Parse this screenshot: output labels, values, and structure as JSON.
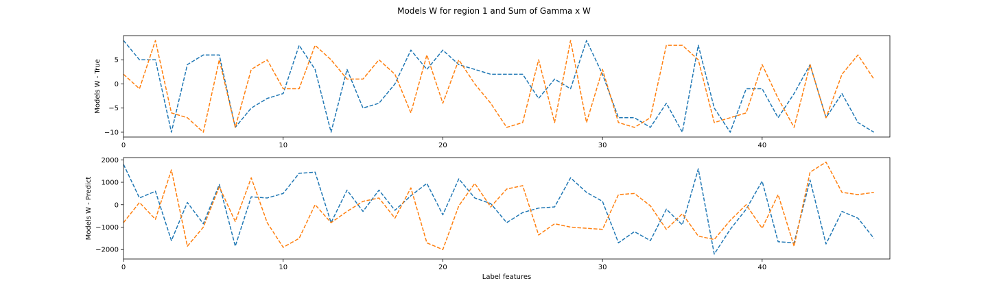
{
  "chart_data": {
    "suptitle": "Models W for region 1 and Sum of Gamma x W",
    "type": "line",
    "colors": [
      "#1f77b4",
      "#ff7f0e"
    ],
    "panels": [
      {
        "type": "line",
        "ylabel": "Models W - True",
        "xlabel": "",
        "xlim": [
          0,
          48
        ],
        "ylim": [
          -11,
          10
        ],
        "xticks": [
          0,
          10,
          20,
          30,
          40
        ],
        "yticks": [
          -10,
          -5,
          0,
          5
        ],
        "grid": false,
        "x": [
          0,
          1,
          2,
          3,
          4,
          5,
          6,
          7,
          8,
          9,
          10,
          11,
          12,
          13,
          14,
          15,
          16,
          17,
          18,
          19,
          20,
          21,
          22,
          23,
          24,
          25,
          26,
          27,
          28,
          29,
          30,
          31,
          32,
          33,
          34,
          35,
          36,
          37,
          38,
          39,
          40,
          41,
          42,
          43,
          44,
          45,
          46,
          47
        ],
        "series": [
          {
            "values": [
              9,
              5,
              5,
              -10,
              4,
              6,
              6,
              -9,
              -5,
              -3,
              -2,
              8,
              3,
              -10,
              3,
              -5,
              -4,
              0,
              7,
              3,
              7,
              4,
              3,
              2,
              2,
              2,
              -3,
              1,
              -1,
              9,
              2,
              -7,
              -7,
              -9,
              -4,
              -10,
              8,
              -5,
              -10,
              -1,
              -1,
              -7,
              -2,
              4,
              -7,
              -2,
              -8,
              -10
            ]
          },
          {
            "values": [
              2,
              -1,
              9,
              -6,
              -7,
              -10,
              5,
              -9,
              3,
              5,
              -1,
              -1,
              8,
              5,
              1,
              1,
              5,
              2,
              -6,
              6,
              -4,
              5,
              0,
              -4,
              -9,
              -8,
              5,
              -8,
              9,
              -8,
              3,
              -8,
              -9,
              -7,
              8,
              8,
              5,
              -8,
              -7,
              -6,
              4,
              -3,
              -9,
              4,
              -7,
              2,
              6,
              1
            ]
          }
        ]
      },
      {
        "type": "line",
        "ylabel": "Models W - Predict",
        "xlabel": "Label features",
        "xlim": [
          0,
          48
        ],
        "ylim": [
          -2420,
          2100
        ],
        "xticks": [
          0,
          10,
          20,
          30,
          40
        ],
        "yticks": [
          -2000,
          -1000,
          0,
          1000,
          2000
        ],
        "grid": false,
        "x": [
          0,
          1,
          2,
          3,
          4,
          5,
          6,
          7,
          8,
          9,
          10,
          11,
          12,
          13,
          14,
          15,
          16,
          17,
          18,
          19,
          20,
          21,
          22,
          23,
          24,
          25,
          26,
          27,
          28,
          29,
          30,
          31,
          32,
          33,
          34,
          35,
          36,
          37,
          38,
          39,
          40,
          41,
          42,
          43,
          44,
          45,
          46,
          47
        ],
        "series": [
          {
            "values": [
              1800,
              300,
              600,
              -1600,
              100,
              -850,
              900,
              -1850,
              350,
              300,
              500,
              1400,
              1450,
              -800,
              650,
              -300,
              650,
              -250,
              400,
              950,
              -450,
              1150,
              300,
              50,
              -800,
              -350,
              -150,
              -100,
              1200,
              550,
              150,
              -1700,
              -1200,
              -1600,
              -200,
              -900,
              1600,
              -2200,
              -1100,
              -200,
              1050,
              -1650,
              -1700,
              1100,
              -1750,
              -300,
              -600,
              -1500
            ]
          },
          {
            "values": [
              -800,
              100,
              -650,
              1550,
              -1850,
              -1000,
              800,
              -750,
              1200,
              -800,
              -1900,
              -1500,
              0,
              -800,
              -300,
              150,
              300,
              -600,
              750,
              -1700,
              -2000,
              -50,
              950,
              -100,
              700,
              850,
              -1350,
              -850,
              -1000,
              -1050,
              -1100,
              450,
              500,
              -50,
              -1100,
              -400,
              -1400,
              -1550,
              -700,
              0,
              -1050,
              450,
              -1850,
              1450,
              1900,
              550,
              450,
              550
            ]
          }
        ]
      }
    ]
  }
}
